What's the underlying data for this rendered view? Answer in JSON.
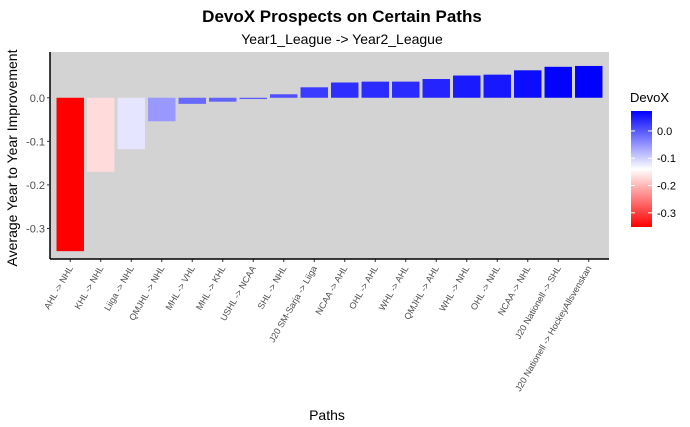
{
  "chart_data": {
    "type": "bar",
    "title": "DevoX Prospects on Certain Paths",
    "subtitle": "Year1_League -> Year2_League",
    "xlabel": "Paths",
    "ylabel": "Average Year to Year Improvement",
    "ylim": [
      -0.37,
      0.105
    ],
    "yticks": [
      0.0,
      -0.1,
      -0.2,
      -0.3
    ],
    "ytick_labels": [
      "0.0",
      "-0.1",
      "-0.2",
      "-0.3"
    ],
    "grid": false,
    "categories": [
      "AHL -> NHL",
      "KHL -> NHL",
      "Liiga -> NHL",
      "QMJHL -> NHL",
      "MHL -> VHL",
      "MHL -> KHL",
      "USHL -> NCAA",
      "SHL -> NHL",
      "J20 SM-Sarja -> Liiga",
      "NCAA -> AHL",
      "OHL -> AHL",
      "WHL -> AHL",
      "QMJHL -> AHL",
      "WHL -> NHL",
      "OHL -> NHL",
      "NCAA -> NHL",
      "J20 Nationell -> SHL",
      "J20 Nationell -> HockeyAllsvenskan"
    ],
    "values": [
      -0.352,
      -0.17,
      -0.118,
      -0.054,
      -0.014,
      -0.009,
      -0.003,
      0.008,
      0.024,
      0.035,
      0.037,
      0.037,
      0.043,
      0.051,
      0.053,
      0.063,
      0.071,
      0.073
    ],
    "legend": {
      "title": "DevoX",
      "placement": "right",
      "tick_values": [
        0.0,
        -0.1,
        -0.2,
        -0.3
      ],
      "tick_labels": [
        "0.0",
        "-0.1",
        "-0.2",
        "-0.3"
      ],
      "low_color": "#ff0000",
      "mid_color": "#ffffff",
      "high_color": "#0000ff",
      "midpoint": -0.14
    },
    "panel_background": "#d3d3d3"
  }
}
